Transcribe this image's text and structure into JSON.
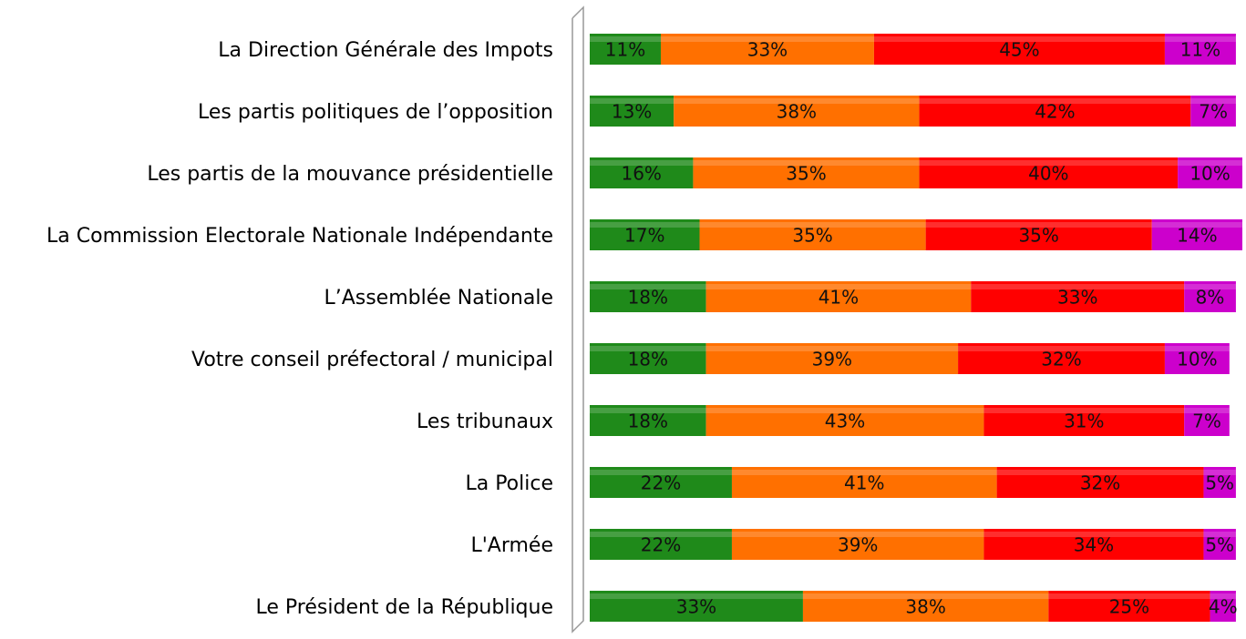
{
  "chart_data": {
    "type": "stacked-bar-horizontal",
    "categories": [
      "La Direction Générale des Impots",
      "Les partis politiques de l’opposition",
      "Les partis de la mouvance présidentielle",
      "La Commission Electorale Nationale Indépendante",
      "L’Assemblée Nationale",
      "Votre conseil préfectoral / municipal",
      "Les tribunaux",
      "La Police",
      "L'Armée",
      "Le Président de la République"
    ],
    "series": [
      {
        "color": "#1f8a1a",
        "values": [
          11,
          13,
          16,
          17,
          18,
          18,
          18,
          22,
          22,
          33
        ],
        "value_labels": [
          "11%",
          "13%",
          "16%",
          "17%",
          "18%",
          "18%",
          "18%",
          "22%",
          "22%",
          "33%"
        ]
      },
      {
        "color": "#ff7000",
        "values": [
          33,
          38,
          35,
          35,
          41,
          39,
          43,
          41,
          39,
          38
        ],
        "value_labels": [
          "33%",
          "38%",
          "35%",
          "35%",
          "41%",
          "39%",
          "43%",
          "41%",
          "39%",
          "38%"
        ]
      },
      {
        "color": "#ff0000",
        "values": [
          45,
          42,
          40,
          35,
          33,
          32,
          31,
          32,
          34,
          25
        ],
        "value_labels": [
          "45%",
          "42%",
          "40%",
          "35%",
          "33%",
          "32%",
          "31%",
          "32%",
          "34%",
          "25%"
        ]
      },
      {
        "color": "#cc00cc",
        "values": [
          11,
          7,
          10,
          14,
          8,
          10,
          7,
          5,
          5,
          4
        ],
        "value_labels": [
          "11%",
          "7%",
          "10%",
          "14%",
          "8%",
          "10%",
          "7%",
          "5%",
          "5%",
          "4%"
        ]
      }
    ]
  }
}
